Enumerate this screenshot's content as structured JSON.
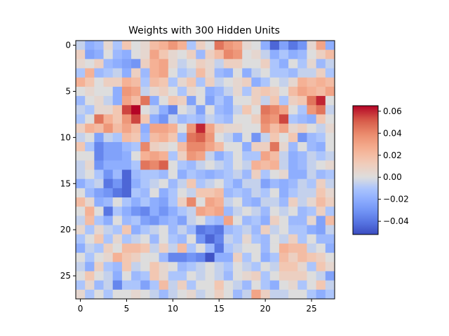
{
  "chart_data": {
    "type": "heatmap",
    "title": "Weights with 300 Hidden Units",
    "xlabel": "",
    "ylabel": "",
    "x_ticks": [
      0,
      5,
      10,
      15,
      20,
      25
    ],
    "y_ticks": [
      0,
      5,
      10,
      15,
      20,
      25
    ],
    "x_range": [
      -0.5,
      27.5
    ],
    "y_range": [
      27.5,
      -0.5
    ],
    "colormap": "coolwarm",
    "vmin": -0.052,
    "vmax": 0.065,
    "colorbar_ticks": [
      0.06,
      0.04,
      0.02,
      0.0,
      -0.02,
      -0.04
    ],
    "colorbar_tick_labels": [
      "0.06",
      "0.04",
      "0.02",
      "0.00",
      "−0.02",
      "−0.04"
    ],
    "colors": {
      "cold": "#3b4cc0",
      "mid": "#dddddd",
      "hot": "#b40426",
      "axis": "#000000"
    },
    "grid": false,
    "rows": 28,
    "cols": 28,
    "values": [
      [
        -0.005,
        -0.02,
        -0.015,
        0.005,
        -0.01,
        0.015,
        0.0,
        0.005,
        0.02,
        0.025,
        0.035,
        0.025,
        -0.01,
        0.01,
        0.0,
        0.045,
        0.035,
        0.03,
        0.005,
        0.0,
        -0.02,
        -0.045,
        -0.025,
        -0.04,
        -0.03,
        0.005,
        0.03,
        -0.02
      ],
      [
        0.01,
        -0.025,
        -0.02,
        0.0,
        -0.015,
        -0.02,
        0.0,
        0.005,
        0.03,
        0.015,
        0.005,
        0.0,
        0.01,
        -0.015,
        0.01,
        0.02,
        0.04,
        0.035,
        0.0,
        0.005,
        -0.005,
        -0.02,
        -0.01,
        -0.02,
        -0.015,
        0.0,
        0.01,
        0.02
      ],
      [
        0.005,
        0.0,
        0.01,
        -0.015,
        -0.02,
        -0.025,
        -0.03,
        0.01,
        0.025,
        0.03,
        0.005,
        -0.005,
        0.0,
        0.01,
        0.005,
        -0.005,
        0.01,
        0.01,
        0.0,
        0.0,
        0.01,
        -0.01,
        -0.02,
        0.0,
        -0.01,
        0.005,
        -0.015,
        -0.005
      ],
      [
        -0.01,
        0.025,
        -0.015,
        -0.01,
        -0.005,
        -0.02,
        0.01,
        -0.015,
        0.025,
        0.03,
        0.0,
        -0.01,
        -0.005,
        0.02,
        0.005,
        -0.015,
        -0.02,
        0.0,
        -0.02,
        -0.005,
        0.0,
        -0.01,
        -0.01,
        -0.015,
        -0.005,
        -0.005,
        0.01,
        -0.01
      ],
      [
        0.025,
        0.015,
        0.0,
        0.01,
        0.01,
        0.025,
        0.02,
        -0.01,
        0.02,
        0.015,
        -0.01,
        0.005,
        0.015,
        -0.01,
        0.01,
        -0.005,
        0.0,
        0.005,
        0.01,
        -0.02,
        -0.01,
        0.0,
        -0.005,
        0.005,
        0.025,
        0.02,
        0.025,
        0.02
      ],
      [
        0.0,
        0.005,
        0.0,
        0.0,
        -0.02,
        0.035,
        0.03,
        -0.005,
        0.005,
        0.01,
        0.0,
        -0.01,
        0.005,
        0.0,
        -0.02,
        -0.015,
        -0.005,
        0.005,
        -0.01,
        0.01,
        0.015,
        0.01,
        0.0,
        0.02,
        0.03,
        0.025,
        0.02,
        0.03
      ],
      [
        -0.015,
        0.0,
        0.005,
        -0.005,
        -0.02,
        0.03,
        0.02,
        0.045,
        -0.02,
        0.0,
        0.015,
        0.01,
        -0.025,
        0.0,
        -0.025,
        -0.01,
        -0.02,
        0.0,
        0.0,
        0.01,
        -0.005,
        0.015,
        -0.01,
        0.01,
        0.015,
        0.045,
        0.06,
        0.0
      ],
      [
        -0.005,
        -0.01,
        0.005,
        0.005,
        0.015,
        0.055,
        0.065,
        0.0,
        -0.005,
        -0.02,
        -0.035,
        0.0,
        -0.005,
        -0.025,
        0.0,
        -0.015,
        -0.02,
        -0.005,
        0.015,
        0.0,
        0.045,
        0.04,
        0.03,
        0.0,
        -0.01,
        0.035,
        0.045,
        -0.005
      ],
      [
        -0.01,
        0.0,
        0.045,
        0.025,
        0.015,
        0.035,
        0.055,
        0.015,
        -0.02,
        -0.03,
        -0.005,
        -0.015,
        -0.01,
        -0.015,
        -0.005,
        -0.01,
        -0.015,
        0.0,
        0.0,
        0.01,
        0.04,
        0.035,
        0.055,
        -0.01,
        -0.015,
        -0.02,
        0.015,
        0.0
      ],
      [
        0.01,
        0.025,
        0.02,
        0.035,
        0.02,
        0.03,
        0.02,
        -0.02,
        0.03,
        0.03,
        0.025,
        0.0,
        0.035,
        0.06,
        0.03,
        0.01,
        0.005,
        0.005,
        0.0,
        0.0,
        0.035,
        0.02,
        0.03,
        0.005,
        0.01,
        0.0,
        -0.005,
        0.005
      ],
      [
        -0.005,
        0.0,
        -0.025,
        -0.005,
        -0.01,
        0.02,
        0.015,
        -0.015,
        0.02,
        0.025,
        0.015,
        -0.015,
        0.045,
        0.05,
        0.035,
        0.0,
        -0.005,
        -0.02,
        0.0,
        -0.03,
        -0.005,
        0.015,
        0.0,
        0.015,
        -0.03,
        -0.015,
        -0.01,
        0.0
      ],
      [
        0.015,
        -0.01,
        -0.035,
        -0.025,
        -0.025,
        -0.015,
        -0.01,
        0.04,
        0.01,
        0.005,
        0.0,
        0.02,
        0.04,
        0.04,
        0.03,
        0.02,
        0.0,
        0.0,
        -0.02,
        0.01,
        0.01,
        0.045,
        0.005,
        -0.015,
        0.0,
        -0.015,
        -0.02,
        0.0
      ],
      [
        0.0,
        0.0,
        -0.035,
        -0.025,
        -0.025,
        -0.02,
        0.0,
        0.025,
        0.03,
        0.025,
        -0.01,
        0.01,
        0.035,
        0.03,
        -0.005,
        -0.02,
        -0.01,
        0.0,
        -0.01,
        -0.01,
        0.03,
        0.02,
        -0.005,
        -0.02,
        -0.015,
        -0.005,
        -0.01,
        -0.005
      ],
      [
        -0.005,
        0.005,
        -0.03,
        -0.02,
        -0.02,
        -0.02,
        -0.01,
        0.045,
        0.04,
        0.05,
        0.0,
        -0.01,
        -0.015,
        -0.005,
        0.0,
        -0.005,
        -0.01,
        0.0,
        -0.005,
        0.025,
        0.02,
        0.025,
        -0.005,
        -0.02,
        -0.015,
        -0.005,
        0.0,
        0.005
      ],
      [
        -0.005,
        0.0,
        -0.01,
        -0.03,
        -0.015,
        -0.045,
        -0.015,
        -0.01,
        -0.01,
        -0.015,
        0.0,
        -0.02,
        -0.01,
        -0.015,
        -0.02,
        -0.015,
        -0.01,
        -0.005,
        -0.015,
        0.01,
        -0.01,
        0.0,
        0.005,
        -0.02,
        -0.02,
        -0.005,
        -0.015,
        -0.01
      ],
      [
        -0.02,
        -0.01,
        -0.005,
        -0.04,
        -0.03,
        -0.045,
        -0.02,
        -0.01,
        -0.005,
        0.0,
        -0.015,
        -0.005,
        0.015,
        -0.01,
        -0.005,
        0.0,
        -0.01,
        -0.02,
        -0.005,
        -0.005,
        -0.025,
        -0.015,
        -0.02,
        -0.015,
        -0.005,
        -0.01,
        0.01,
        -0.005
      ],
      [
        0.0,
        -0.015,
        -0.025,
        -0.03,
        -0.04,
        -0.045,
        -0.01,
        -0.015,
        0.0,
        -0.02,
        -0.01,
        0.0,
        -0.005,
        0.015,
        0.015,
        0.02,
        -0.015,
        -0.01,
        -0.015,
        -0.005,
        -0.01,
        0.0,
        -0.02,
        -0.01,
        -0.005,
        -0.005,
        0.015,
        0.005
      ],
      [
        0.02,
        0.005,
        -0.02,
        -0.015,
        0.0,
        -0.01,
        -0.02,
        -0.01,
        -0.02,
        -0.025,
        -0.01,
        0.01,
        0.04,
        0.0,
        0.03,
        0.025,
        -0.005,
        0.0,
        -0.015,
        -0.02,
        -0.005,
        -0.005,
        -0.015,
        0.01,
        -0.005,
        0.005,
        0.02,
        0.01
      ],
      [
        0.0,
        0.025,
        0.0,
        -0.04,
        -0.01,
        -0.02,
        -0.03,
        -0.035,
        -0.02,
        -0.03,
        -0.02,
        -0.01,
        -0.005,
        0.03,
        0.025,
        0.03,
        -0.015,
        -0.005,
        0.0,
        -0.005,
        -0.015,
        0.0,
        -0.005,
        0.0,
        -0.015,
        -0.01,
        0.01,
        -0.01
      ],
      [
        -0.005,
        0.02,
        -0.01,
        -0.02,
        0.0,
        -0.015,
        -0.01,
        -0.025,
        -0.03,
        -0.02,
        -0.015,
        -0.025,
        -0.005,
        0.0,
        -0.01,
        -0.015,
        0.03,
        0.0,
        -0.015,
        -0.01,
        -0.02,
        0.01,
        0.0,
        -0.015,
        -0.015,
        0.005,
        -0.025,
        0.02
      ],
      [
        0.005,
        -0.01,
        0.005,
        -0.005,
        -0.01,
        0.015,
        -0.02,
        -0.01,
        -0.005,
        0.0,
        -0.015,
        -0.005,
        -0.015,
        -0.04,
        -0.035,
        -0.04,
        -0.015,
        -0.01,
        -0.005,
        -0.015,
        0.01,
        -0.005,
        0.0,
        -0.01,
        -0.01,
        -0.02,
        -0.025,
        -0.005
      ],
      [
        -0.01,
        0.0,
        0.015,
        -0.01,
        0.005,
        -0.01,
        -0.005,
        0.0,
        -0.015,
        0.0,
        -0.01,
        -0.015,
        0.0,
        -0.03,
        -0.045,
        -0.035,
        -0.005,
        -0.01,
        0.005,
        -0.01,
        -0.015,
        0.0,
        -0.005,
        0.01,
        -0.01,
        0.0,
        -0.015,
        -0.015
      ],
      [
        -0.02,
        -0.005,
        -0.01,
        0.01,
        0.0,
        0.02,
        0.02,
        0.015,
        -0.005,
        0.01,
        -0.005,
        0.02,
        -0.01,
        0.0,
        -0.015,
        -0.04,
        -0.01,
        -0.005,
        0.0,
        0.0,
        -0.015,
        0.0,
        0.025,
        0.02,
        0.02,
        -0.005,
        0.0,
        -0.02
      ],
      [
        0.0,
        -0.01,
        0.0,
        0.005,
        0.025,
        0.015,
        0.01,
        0.0,
        0.0,
        -0.015,
        -0.035,
        -0.035,
        -0.03,
        -0.035,
        -0.05,
        -0.02,
        -0.02,
        0.01,
        -0.01,
        0.0,
        -0.02,
        -0.01,
        0.02,
        0.01,
        0.02,
        0.015,
        0.01,
        0.0
      ],
      [
        -0.005,
        -0.02,
        0.01,
        -0.01,
        -0.015,
        0.015,
        -0.005,
        0.0,
        0.015,
        0.005,
        0.0,
        -0.015,
        -0.01,
        -0.005,
        0.0,
        -0.005,
        -0.01,
        0.0,
        -0.005,
        -0.01,
        0.0,
        -0.005,
        0.015,
        0.015,
        0.005,
        -0.01,
        0.015,
        0.005
      ],
      [
        0.0,
        0.015,
        0.0,
        -0.005,
        -0.02,
        0.0,
        -0.015,
        -0.01,
        0.015,
        0.005,
        -0.01,
        -0.01,
        0.0,
        -0.005,
        0.0,
        -0.005,
        -0.015,
        0.0,
        0.005,
        0.01,
        -0.01,
        0.0,
        0.01,
        0.01,
        0.01,
        0.0,
        -0.005,
        -0.025
      ],
      [
        -0.01,
        0.005,
        -0.015,
        -0.005,
        -0.035,
        -0.01,
        -0.01,
        -0.025,
        -0.01,
        0.02,
        -0.005,
        0.01,
        -0.01,
        0.0,
        0.0,
        0.015,
        0.0,
        -0.005,
        -0.015,
        0.0,
        -0.01,
        -0.02,
        0.0,
        0.005,
        -0.01,
        0.0,
        0.015,
        -0.005
      ],
      [
        0.005,
        -0.01,
        0.0,
        -0.01,
        0.0,
        0.0,
        0.005,
        0.0,
        -0.005,
        -0.015,
        -0.005,
        0.0,
        0.005,
        -0.005,
        0.0,
        0.01,
        0.0,
        -0.015,
        -0.005,
        0.03,
        0.01,
        -0.005,
        -0.005,
        0.0,
        0.0,
        -0.01,
        -0.02,
        -0.01
      ]
    ]
  }
}
